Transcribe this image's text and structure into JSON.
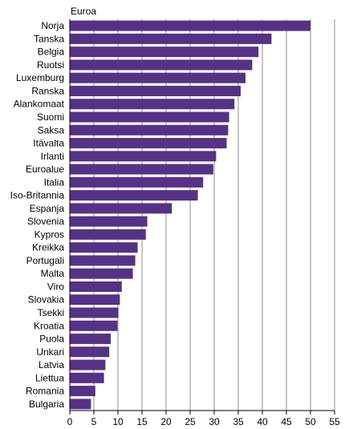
{
  "chart_data": {
    "type": "bar",
    "orientation": "horizontal",
    "unit_label": "Euroa",
    "categories": [
      "Norja",
      "Tanska",
      "Belgia",
      "Ruotsi",
      "Luxemburg",
      "Ranska",
      "Alankomaat",
      "Suomi",
      "Saksa",
      "Itävalta",
      "Irlanti",
      "Euroalue",
      "Italia",
      "Iso-Britannia",
      "Espanja",
      "Slovenia",
      "Kypros",
      "Kreikka",
      "Portugali",
      "Malta",
      "Viro",
      "Slovakia",
      "Tsekki",
      "Kroatia",
      "Puola",
      "Unkari",
      "Latvia",
      "Liettua",
      "Romania",
      "Bulgaria"
    ],
    "values": [
      50.0,
      41.9,
      39.2,
      37.9,
      36.5,
      35.5,
      34.2,
      33.1,
      32.9,
      32.6,
      30.4,
      29.8,
      27.7,
      26.6,
      21.2,
      16.1,
      15.8,
      14.1,
      13.6,
      13.1,
      10.8,
      10.4,
      10.1,
      9.9,
      8.5,
      8.2,
      7.4,
      7.1,
      5.3,
      4.4
    ],
    "xlim": [
      0,
      55
    ],
    "xticks": [
      0,
      5,
      10,
      15,
      20,
      25,
      30,
      35,
      40,
      45,
      50,
      55
    ],
    "grid": "vertical",
    "bar_color": "#553286"
  }
}
